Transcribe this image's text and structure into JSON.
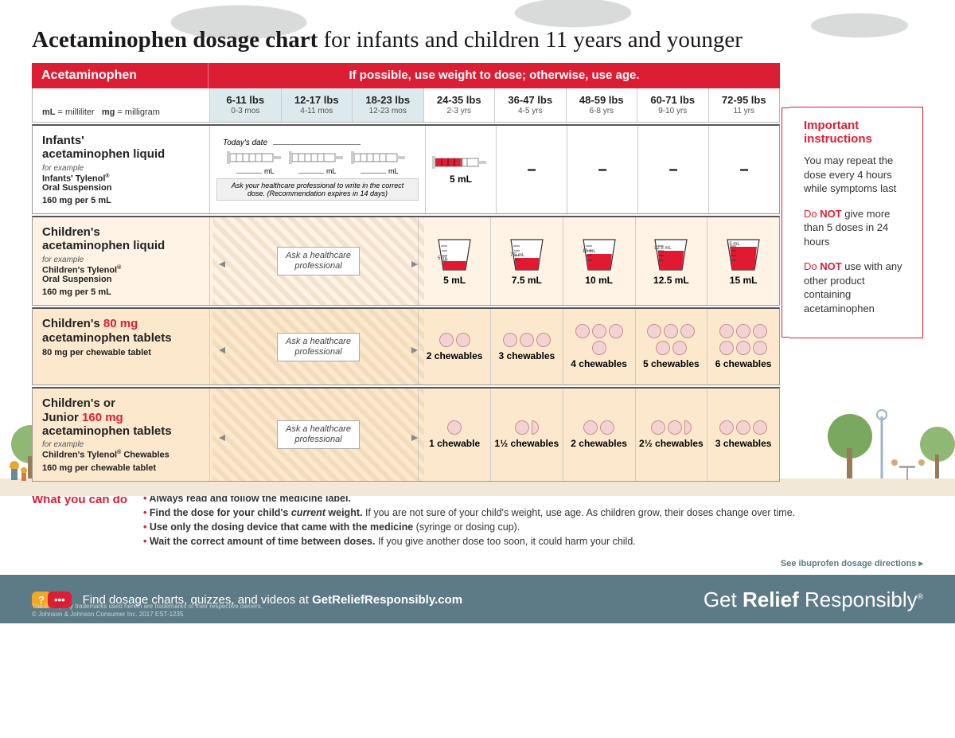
{
  "title_bold": "Acetaminophen dosage chart",
  "title_rest": " for infants and children 11 years and younger",
  "red_drug": "Acetaminophen",
  "red_msg": "If possible, use weight to dose; otherwise, use age.",
  "legend": "mL = milliliter    mg = milligram",
  "columns": [
    {
      "lbs": "6-11 lbs",
      "age": "0-3 mos",
      "blue": true
    },
    {
      "lbs": "12-17 lbs",
      "age": "4-11 mos",
      "blue": true
    },
    {
      "lbs": "18-23 lbs",
      "age": "12-23 mos",
      "blue": true
    },
    {
      "lbs": "24-35 lbs",
      "age": "2-3 yrs",
      "blue": false
    },
    {
      "lbs": "36-47 lbs",
      "age": "4-5 yrs",
      "blue": false
    },
    {
      "lbs": "48-59 lbs",
      "age": "6-8 yrs",
      "blue": false
    },
    {
      "lbs": "60-71 lbs",
      "age": "9-10 yrs",
      "blue": false
    },
    {
      "lbs": "72-95 lbs",
      "age": "11 yrs",
      "blue": false
    }
  ],
  "row_infants": {
    "name": "Infants'\nacetaminophen liquid",
    "example_label": "for example",
    "product": "Infants' Tylenol®\nOral Suspension",
    "strength": "160 mg per 5 mL",
    "today": "Today's date",
    "ml_label": "mL",
    "ask_hcp": "Ask your healthcare professional to write in the correct dose. (Recommendation expires in 14 days)",
    "dose_5ml": "5 mL",
    "syringe_fill": "#dc1e35",
    "syringe_fill_ratio": 0.6
  },
  "row_child_liquid": {
    "name": "Children's\nacetaminophen liquid",
    "example_label": "for example",
    "product": "Children's Tylenol®\nOral Suspension",
    "strength": "160 mg per 5 mL",
    "ask": "Ask a healthcare\nprofessional",
    "doses": [
      "5 mL",
      "7.5 mL",
      "10 mL",
      "12.5 mL",
      "15 mL"
    ],
    "cup_labels": [
      "5 mL",
      "7.5 mL",
      "10 mL",
      "12.5 mL",
      "15 mL"
    ],
    "fill_ratios": [
      0.3,
      0.42,
      0.55,
      0.68,
      0.8
    ],
    "cup_fill": "#e11931",
    "cup_stroke": "#222222"
  },
  "row_80mg": {
    "name_pre": "Children's ",
    "name_hl": "80 mg",
    "name_post": "\nacetaminophen tablets",
    "strength": "80 mg per chewable tablet",
    "ask": "Ask a healthcare\nprofessional",
    "doses": [
      "2 chewables",
      "3 chewables",
      "4 chewables",
      "5 chewables",
      "6 chewables"
    ],
    "counts": [
      2,
      3,
      4,
      5,
      6
    ],
    "pill_fill": "#f4d2d2",
    "pill_stroke": "#c89090"
  },
  "row_160mg": {
    "name_pre": "Children's or\nJunior ",
    "name_hl": "160 mg",
    "name_post": "\nacetaminophen tablets",
    "example_label": "for example",
    "product": "Children's Tylenol® Chewables",
    "strength": "160 mg per chewable tablet",
    "ask": "Ask a healthcare\nprofessional",
    "doses": [
      "1 chewable",
      "1½ chewables",
      "2 chewables",
      "2½ chewables",
      "3 chewables"
    ],
    "counts": [
      1,
      1.5,
      2,
      2.5,
      3
    ],
    "pill_fill": "#f4d2d2",
    "pill_stroke": "#c89090"
  },
  "side": {
    "title": "Important instructions",
    "p1": "You may repeat the dose every 4 hours while symptoms last",
    "p2_pre": "Do ",
    "p2_not": "NOT",
    "p2_post": " give more than 5 doses in 24 hours",
    "p3_pre": "Do ",
    "p3_not": "NOT",
    "p3_post": " use with any other product containing acetaminophen"
  },
  "wycd": {
    "label": "What you can do",
    "items": [
      {
        "bold": "Always read and follow the medicine label.",
        "rest": ""
      },
      {
        "bold": "Find the dose for your child's ",
        "ital": "current",
        "bold2": " weight.",
        "rest": " If you are not sure of your child's weight, use age. As children grow, their doses change over time."
      },
      {
        "bold": "Use only the dosing device that came with the medicine",
        "rest": " (syringe or dosing cup)."
      },
      {
        "bold": "Wait the correct amount of time between doses.",
        "rest": " If you give another dose too soon, it could harm your child."
      }
    ]
  },
  "see_link": "See ibuprofen dosage directions ▸",
  "footer": {
    "find_pre": "Find dosage charts, quizzes, and videos at ",
    "find_bold": "GetReliefResponsibly.com",
    "brand_pre": "Get ",
    "brand_bold": "Relief",
    "brand_post": " Responsibly",
    "legal1": "The third-party trademarks used herein are trademarks of their respective owners.",
    "legal2": "© Johnson & Johnson Consumer Inc. 2017   EST-1235"
  },
  "colors": {
    "brand_red": "#dc1e35",
    "header_blue": "#dce9ed",
    "tint": "#fce9cd",
    "tint_light": "#fef3e4",
    "footer_bg": "#5d7b86",
    "bubble_orange": "#f5a623"
  }
}
